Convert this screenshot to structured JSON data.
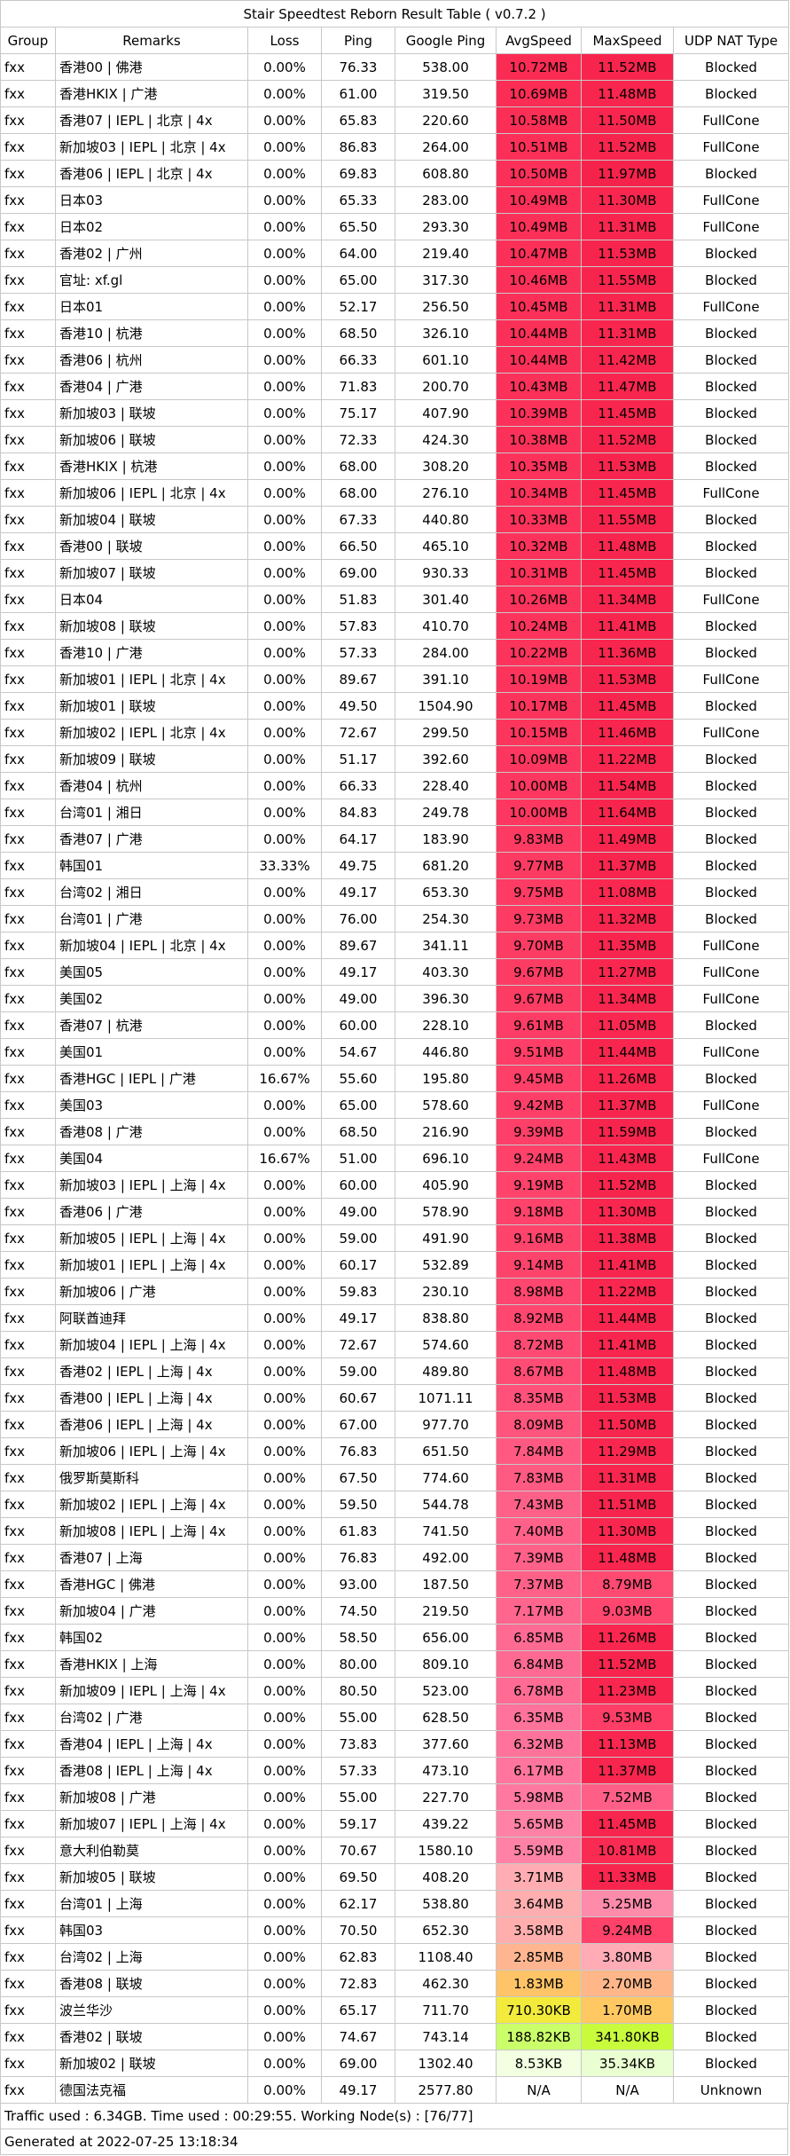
{
  "title": "Stair Speedtest Reborn Result Table ( v0.7.2 )",
  "headers": [
    "Group",
    "Remarks",
    "Loss",
    "Ping",
    "Google Ping",
    "AvgSpeed",
    "MaxSpeed",
    "UDP NAT Type"
  ],
  "rows": [
    {
      "group": "fxx",
      "remarks": "香港00 | 佛港",
      "loss": "0.00%",
      "ping": "76.33",
      "gping": "538.00",
      "avg": "10.72MB",
      "max": "11.52MB",
      "nat": "Blocked"
    },
    {
      "group": "fxx",
      "remarks": "香港HKIX | 广港",
      "loss": "0.00%",
      "ping": "61.00",
      "gping": "319.50",
      "avg": "10.69MB",
      "max": "11.48MB",
      "nat": "Blocked"
    },
    {
      "group": "fxx",
      "remarks": "香港07 | IEPL | 北京 | 4x",
      "loss": "0.00%",
      "ping": "65.83",
      "gping": "220.60",
      "avg": "10.58MB",
      "max": "11.50MB",
      "nat": "FullCone"
    },
    {
      "group": "fxx",
      "remarks": "新加坡03 | IEPL | 北京 | 4x",
      "loss": "0.00%",
      "ping": "86.83",
      "gping": "264.00",
      "avg": "10.51MB",
      "max": "11.52MB",
      "nat": "FullCone"
    },
    {
      "group": "fxx",
      "remarks": "香港06 | IEPL | 北京 | 4x",
      "loss": "0.00%",
      "ping": "69.83",
      "gping": "608.80",
      "avg": "10.50MB",
      "max": "11.97MB",
      "nat": "Blocked"
    },
    {
      "group": "fxx",
      "remarks": "日本03",
      "loss": "0.00%",
      "ping": "65.33",
      "gping": "283.00",
      "avg": "10.49MB",
      "max": "11.30MB",
      "nat": "FullCone"
    },
    {
      "group": "fxx",
      "remarks": "日本02",
      "loss": "0.00%",
      "ping": "65.50",
      "gping": "293.30",
      "avg": "10.49MB",
      "max": "11.31MB",
      "nat": "FullCone"
    },
    {
      "group": "fxx",
      "remarks": "香港02 | 广州",
      "loss": "0.00%",
      "ping": "64.00",
      "gping": "219.40",
      "avg": "10.47MB",
      "max": "11.53MB",
      "nat": "Blocked"
    },
    {
      "group": "fxx",
      "remarks": "官址: xf.gl",
      "loss": "0.00%",
      "ping": "65.00",
      "gping": "317.30",
      "avg": "10.46MB",
      "max": "11.55MB",
      "nat": "Blocked"
    },
    {
      "group": "fxx",
      "remarks": "日本01",
      "loss": "0.00%",
      "ping": "52.17",
      "gping": "256.50",
      "avg": "10.45MB",
      "max": "11.31MB",
      "nat": "FullCone"
    },
    {
      "group": "fxx",
      "remarks": "香港10 | 杭港",
      "loss": "0.00%",
      "ping": "68.50",
      "gping": "326.10",
      "avg": "10.44MB",
      "max": "11.31MB",
      "nat": "Blocked"
    },
    {
      "group": "fxx",
      "remarks": "香港06 | 杭州",
      "loss": "0.00%",
      "ping": "66.33",
      "gping": "601.10",
      "avg": "10.44MB",
      "max": "11.42MB",
      "nat": "Blocked"
    },
    {
      "group": "fxx",
      "remarks": "香港04 | 广港",
      "loss": "0.00%",
      "ping": "71.83",
      "gping": "200.70",
      "avg": "10.43MB",
      "max": "11.47MB",
      "nat": "Blocked"
    },
    {
      "group": "fxx",
      "remarks": "新加坡03 | 联坡",
      "loss": "0.00%",
      "ping": "75.17",
      "gping": "407.90",
      "avg": "10.39MB",
      "max": "11.45MB",
      "nat": "Blocked"
    },
    {
      "group": "fxx",
      "remarks": "新加坡06 | 联坡",
      "loss": "0.00%",
      "ping": "72.33",
      "gping": "424.30",
      "avg": "10.38MB",
      "max": "11.52MB",
      "nat": "Blocked"
    },
    {
      "group": "fxx",
      "remarks": "香港HKIX | 杭港",
      "loss": "0.00%",
      "ping": "68.00",
      "gping": "308.20",
      "avg": "10.35MB",
      "max": "11.53MB",
      "nat": "Blocked"
    },
    {
      "group": "fxx",
      "remarks": "新加坡06 | IEPL | 北京 | 4x",
      "loss": "0.00%",
      "ping": "68.00",
      "gping": "276.10",
      "avg": "10.34MB",
      "max": "11.45MB",
      "nat": "FullCone"
    },
    {
      "group": "fxx",
      "remarks": "新加坡04 | 联坡",
      "loss": "0.00%",
      "ping": "67.33",
      "gping": "440.80",
      "avg": "10.33MB",
      "max": "11.55MB",
      "nat": "Blocked"
    },
    {
      "group": "fxx",
      "remarks": "香港00 | 联坡",
      "loss": "0.00%",
      "ping": "66.50",
      "gping": "465.10",
      "avg": "10.32MB",
      "max": "11.48MB",
      "nat": "Blocked"
    },
    {
      "group": "fxx",
      "remarks": "新加坡07 | 联坡",
      "loss": "0.00%",
      "ping": "69.00",
      "gping": "930.33",
      "avg": "10.31MB",
      "max": "11.45MB",
      "nat": "Blocked"
    },
    {
      "group": "fxx",
      "remarks": "日本04",
      "loss": "0.00%",
      "ping": "51.83",
      "gping": "301.40",
      "avg": "10.26MB",
      "max": "11.34MB",
      "nat": "FullCone"
    },
    {
      "group": "fxx",
      "remarks": "新加坡08 | 联坡",
      "loss": "0.00%",
      "ping": "57.83",
      "gping": "410.70",
      "avg": "10.24MB",
      "max": "11.41MB",
      "nat": "Blocked"
    },
    {
      "group": "fxx",
      "remarks": "香港10 | 广港",
      "loss": "0.00%",
      "ping": "57.33",
      "gping": "284.00",
      "avg": "10.22MB",
      "max": "11.36MB",
      "nat": "Blocked"
    },
    {
      "group": "fxx",
      "remarks": "新加坡01 | IEPL | 北京 | 4x",
      "loss": "0.00%",
      "ping": "89.67",
      "gping": "391.10",
      "avg": "10.19MB",
      "max": "11.53MB",
      "nat": "FullCone"
    },
    {
      "group": "fxx",
      "remarks": "新加坡01 | 联坡",
      "loss": "0.00%",
      "ping": "49.50",
      "gping": "1504.90",
      "avg": "10.17MB",
      "max": "11.45MB",
      "nat": "Blocked"
    },
    {
      "group": "fxx",
      "remarks": "新加坡02 | IEPL | 北京 | 4x",
      "loss": "0.00%",
      "ping": "72.67",
      "gping": "299.50",
      "avg": "10.15MB",
      "max": "11.46MB",
      "nat": "FullCone"
    },
    {
      "group": "fxx",
      "remarks": "新加坡09 | 联坡",
      "loss": "0.00%",
      "ping": "51.17",
      "gping": "392.60",
      "avg": "10.09MB",
      "max": "11.22MB",
      "nat": "Blocked"
    },
    {
      "group": "fxx",
      "remarks": "香港04 | 杭州",
      "loss": "0.00%",
      "ping": "66.33",
      "gping": "228.40",
      "avg": "10.00MB",
      "max": "11.54MB",
      "nat": "Blocked"
    },
    {
      "group": "fxx",
      "remarks": "台湾01 | 湘日",
      "loss": "0.00%",
      "ping": "84.83",
      "gping": "249.78",
      "avg": "10.00MB",
      "max": "11.64MB",
      "nat": "Blocked"
    },
    {
      "group": "fxx",
      "remarks": "香港07 | 广港",
      "loss": "0.00%",
      "ping": "64.17",
      "gping": "183.90",
      "avg": "9.83MB",
      "max": "11.49MB",
      "nat": "Blocked"
    },
    {
      "group": "fxx",
      "remarks": "韩国01",
      "loss": "33.33%",
      "ping": "49.75",
      "gping": "681.20",
      "avg": "9.77MB",
      "max": "11.37MB",
      "nat": "Blocked"
    },
    {
      "group": "fxx",
      "remarks": "台湾02 | 湘日",
      "loss": "0.00%",
      "ping": "49.17",
      "gping": "653.30",
      "avg": "9.75MB",
      "max": "11.08MB",
      "nat": "Blocked"
    },
    {
      "group": "fxx",
      "remarks": "台湾01 | 广港",
      "loss": "0.00%",
      "ping": "76.00",
      "gping": "254.30",
      "avg": "9.73MB",
      "max": "11.32MB",
      "nat": "Blocked"
    },
    {
      "group": "fxx",
      "remarks": "新加坡04 | IEPL | 北京 | 4x",
      "loss": "0.00%",
      "ping": "89.67",
      "gping": "341.11",
      "avg": "9.70MB",
      "max": "11.35MB",
      "nat": "FullCone"
    },
    {
      "group": "fxx",
      "remarks": "美国05",
      "loss": "0.00%",
      "ping": "49.17",
      "gping": "403.30",
      "avg": "9.67MB",
      "max": "11.27MB",
      "nat": "FullCone"
    },
    {
      "group": "fxx",
      "remarks": "美国02",
      "loss": "0.00%",
      "ping": "49.00",
      "gping": "396.30",
      "avg": "9.67MB",
      "max": "11.34MB",
      "nat": "FullCone"
    },
    {
      "group": "fxx",
      "remarks": "香港07 | 杭港",
      "loss": "0.00%",
      "ping": "60.00",
      "gping": "228.10",
      "avg": "9.61MB",
      "max": "11.05MB",
      "nat": "Blocked"
    },
    {
      "group": "fxx",
      "remarks": "美国01",
      "loss": "0.00%",
      "ping": "54.67",
      "gping": "446.80",
      "avg": "9.51MB",
      "max": "11.44MB",
      "nat": "FullCone"
    },
    {
      "group": "fxx",
      "remarks": "香港HGC | IEPL | 广港",
      "loss": "16.67%",
      "ping": "55.60",
      "gping": "195.80",
      "avg": "9.45MB",
      "max": "11.26MB",
      "nat": "Blocked"
    },
    {
      "group": "fxx",
      "remarks": "美国03",
      "loss": "0.00%",
      "ping": "65.00",
      "gping": "578.60",
      "avg": "9.42MB",
      "max": "11.37MB",
      "nat": "FullCone"
    },
    {
      "group": "fxx",
      "remarks": "香港08 | 广港",
      "loss": "0.00%",
      "ping": "68.50",
      "gping": "216.90",
      "avg": "9.39MB",
      "max": "11.59MB",
      "nat": "Blocked"
    },
    {
      "group": "fxx",
      "remarks": "美国04",
      "loss": "16.67%",
      "ping": "51.00",
      "gping": "696.10",
      "avg": "9.24MB",
      "max": "11.43MB",
      "nat": "FullCone"
    },
    {
      "group": "fxx",
      "remarks": "新加坡03 | IEPL | 上海 | 4x",
      "loss": "0.00%",
      "ping": "60.00",
      "gping": "405.90",
      "avg": "9.19MB",
      "max": "11.52MB",
      "nat": "Blocked"
    },
    {
      "group": "fxx",
      "remarks": "香港06 | 广港",
      "loss": "0.00%",
      "ping": "49.00",
      "gping": "578.90",
      "avg": "9.18MB",
      "max": "11.30MB",
      "nat": "Blocked"
    },
    {
      "group": "fxx",
      "remarks": "新加坡05 | IEPL | 上海 | 4x",
      "loss": "0.00%",
      "ping": "59.00",
      "gping": "491.90",
      "avg": "9.16MB",
      "max": "11.38MB",
      "nat": "Blocked"
    },
    {
      "group": "fxx",
      "remarks": "新加坡01 | IEPL | 上海 | 4x",
      "loss": "0.00%",
      "ping": "60.17",
      "gping": "532.89",
      "avg": "9.14MB",
      "max": "11.41MB",
      "nat": "Blocked"
    },
    {
      "group": "fxx",
      "remarks": "新加坡06 | 广港",
      "loss": "0.00%",
      "ping": "59.83",
      "gping": "230.10",
      "avg": "8.98MB",
      "max": "11.22MB",
      "nat": "Blocked"
    },
    {
      "group": "fxx",
      "remarks": "阿联酋迪拜",
      "loss": "0.00%",
      "ping": "49.17",
      "gping": "838.80",
      "avg": "8.92MB",
      "max": "11.44MB",
      "nat": "Blocked"
    },
    {
      "group": "fxx",
      "remarks": "新加坡04 | IEPL | 上海 | 4x",
      "loss": "0.00%",
      "ping": "72.67",
      "gping": "574.60",
      "avg": "8.72MB",
      "max": "11.41MB",
      "nat": "Blocked"
    },
    {
      "group": "fxx",
      "remarks": "香港02 | IEPL | 上海 | 4x",
      "loss": "0.00%",
      "ping": "59.00",
      "gping": "489.80",
      "avg": "8.67MB",
      "max": "11.48MB",
      "nat": "Blocked"
    },
    {
      "group": "fxx",
      "remarks": "香港00 | IEPL | 上海 | 4x",
      "loss": "0.00%",
      "ping": "60.67",
      "gping": "1071.11",
      "avg": "8.35MB",
      "max": "11.53MB",
      "nat": "Blocked"
    },
    {
      "group": "fxx",
      "remarks": "香港06 | IEPL | 上海 | 4x",
      "loss": "0.00%",
      "ping": "67.00",
      "gping": "977.70",
      "avg": "8.09MB",
      "max": "11.50MB",
      "nat": "Blocked"
    },
    {
      "group": "fxx",
      "remarks": "新加坡06 | IEPL | 上海 | 4x",
      "loss": "0.00%",
      "ping": "76.83",
      "gping": "651.50",
      "avg": "7.84MB",
      "max": "11.29MB",
      "nat": "Blocked"
    },
    {
      "group": "fxx",
      "remarks": "俄罗斯莫斯科",
      "loss": "0.00%",
      "ping": "67.50",
      "gping": "774.60",
      "avg": "7.83MB",
      "max": "11.31MB",
      "nat": "Blocked"
    },
    {
      "group": "fxx",
      "remarks": "新加坡02 | IEPL | 上海 | 4x",
      "loss": "0.00%",
      "ping": "59.50",
      "gping": "544.78",
      "avg": "7.43MB",
      "max": "11.51MB",
      "nat": "Blocked"
    },
    {
      "group": "fxx",
      "remarks": "新加坡08 | IEPL | 上海 | 4x",
      "loss": "0.00%",
      "ping": "61.83",
      "gping": "741.50",
      "avg": "7.40MB",
      "max": "11.30MB",
      "nat": "Blocked"
    },
    {
      "group": "fxx",
      "remarks": "香港07 | 上海",
      "loss": "0.00%",
      "ping": "76.83",
      "gping": "492.00",
      "avg": "7.39MB",
      "max": "11.48MB",
      "nat": "Blocked"
    },
    {
      "group": "fxx",
      "remarks": "香港HGC | 佛港",
      "loss": "0.00%",
      "ping": "93.00",
      "gping": "187.50",
      "avg": "7.37MB",
      "max": "8.79MB",
      "nat": "Blocked"
    },
    {
      "group": "fxx",
      "remarks": "新加坡04 | 广港",
      "loss": "0.00%",
      "ping": "74.50",
      "gping": "219.50",
      "avg": "7.17MB",
      "max": "9.03MB",
      "nat": "Blocked"
    },
    {
      "group": "fxx",
      "remarks": "韩国02",
      "loss": "0.00%",
      "ping": "58.50",
      "gping": "656.00",
      "avg": "6.85MB",
      "max": "11.26MB",
      "nat": "Blocked"
    },
    {
      "group": "fxx",
      "remarks": "香港HKIX | 上海",
      "loss": "0.00%",
      "ping": "80.00",
      "gping": "809.10",
      "avg": "6.84MB",
      "max": "11.52MB",
      "nat": "Blocked"
    },
    {
      "group": "fxx",
      "remarks": "新加坡09 | IEPL | 上海 | 4x",
      "loss": "0.00%",
      "ping": "80.50",
      "gping": "523.00",
      "avg": "6.78MB",
      "max": "11.23MB",
      "nat": "Blocked"
    },
    {
      "group": "fxx",
      "remarks": "台湾02 | 广港",
      "loss": "0.00%",
      "ping": "55.00",
      "gping": "628.50",
      "avg": "6.35MB",
      "max": "9.53MB",
      "nat": "Blocked"
    },
    {
      "group": "fxx",
      "remarks": "香港04 | IEPL | 上海 | 4x",
      "loss": "0.00%",
      "ping": "73.83",
      "gping": "377.60",
      "avg": "6.32MB",
      "max": "11.13MB",
      "nat": "Blocked"
    },
    {
      "group": "fxx",
      "remarks": "香港08 | IEPL | 上海 | 4x",
      "loss": "0.00%",
      "ping": "57.33",
      "gping": "473.10",
      "avg": "6.17MB",
      "max": "11.37MB",
      "nat": "Blocked"
    },
    {
      "group": "fxx",
      "remarks": "新加坡08 | 广港",
      "loss": "0.00%",
      "ping": "55.00",
      "gping": "227.70",
      "avg": "5.98MB",
      "max": "7.52MB",
      "nat": "Blocked"
    },
    {
      "group": "fxx",
      "remarks": "新加坡07 | IEPL | 上海 | 4x",
      "loss": "0.00%",
      "ping": "59.17",
      "gping": "439.22",
      "avg": "5.65MB",
      "max": "11.45MB",
      "nat": "Blocked"
    },
    {
      "group": "fxx",
      "remarks": "意大利伯勒莫",
      "loss": "0.00%",
      "ping": "70.67",
      "gping": "1580.10",
      "avg": "5.59MB",
      "max": "10.81MB",
      "nat": "Blocked"
    },
    {
      "group": "fxx",
      "remarks": "新加坡05 | 联坡",
      "loss": "0.00%",
      "ping": "69.50",
      "gping": "408.20",
      "avg": "3.71MB",
      "max": "11.33MB",
      "nat": "Blocked"
    },
    {
      "group": "fxx",
      "remarks": "台湾01 | 上海",
      "loss": "0.00%",
      "ping": "62.17",
      "gping": "538.80",
      "avg": "3.64MB",
      "max": "5.25MB",
      "nat": "Blocked"
    },
    {
      "group": "fxx",
      "remarks": "韩国03",
      "loss": "0.00%",
      "ping": "70.50",
      "gping": "652.30",
      "avg": "3.58MB",
      "max": "9.24MB",
      "nat": "Blocked"
    },
    {
      "group": "fxx",
      "remarks": "台湾02 | 上海",
      "loss": "0.00%",
      "ping": "62.83",
      "gping": "1108.40",
      "avg": "2.85MB",
      "max": "3.80MB",
      "nat": "Blocked"
    },
    {
      "group": "fxx",
      "remarks": "香港08 | 联坡",
      "loss": "0.00%",
      "ping": "72.83",
      "gping": "462.30",
      "avg": "1.83MB",
      "max": "2.70MB",
      "nat": "Blocked"
    },
    {
      "group": "fxx",
      "remarks": "波兰华沙",
      "loss": "0.00%",
      "ping": "65.17",
      "gping": "711.70",
      "avg": "710.30KB",
      "max": "1.70MB",
      "nat": "Blocked"
    },
    {
      "group": "fxx",
      "remarks": "香港02 | 联坡",
      "loss": "0.00%",
      "ping": "74.67",
      "gping": "743.14",
      "avg": "188.82KB",
      "max": "341.80KB",
      "nat": "Blocked"
    },
    {
      "group": "fxx",
      "remarks": "新加坡02 | 联坡",
      "loss": "0.00%",
      "ping": "69.00",
      "gping": "1302.40",
      "avg": "8.53KB",
      "max": "35.34KB",
      "nat": "Blocked"
    },
    {
      "group": "fxx",
      "remarks": "德国法克福",
      "loss": "0.00%",
      "ping": "49.17",
      "gping": "2577.80",
      "avg": "N/A",
      "max": "N/A",
      "nat": "Unknown"
    }
  ],
  "footer_traffic": "Traffic used : 6.34GB. Time used : 00:29:55. Working Node(s) : [76/77]",
  "footer_generated": "Generated at 2022-07-25 13:18:34"
}
